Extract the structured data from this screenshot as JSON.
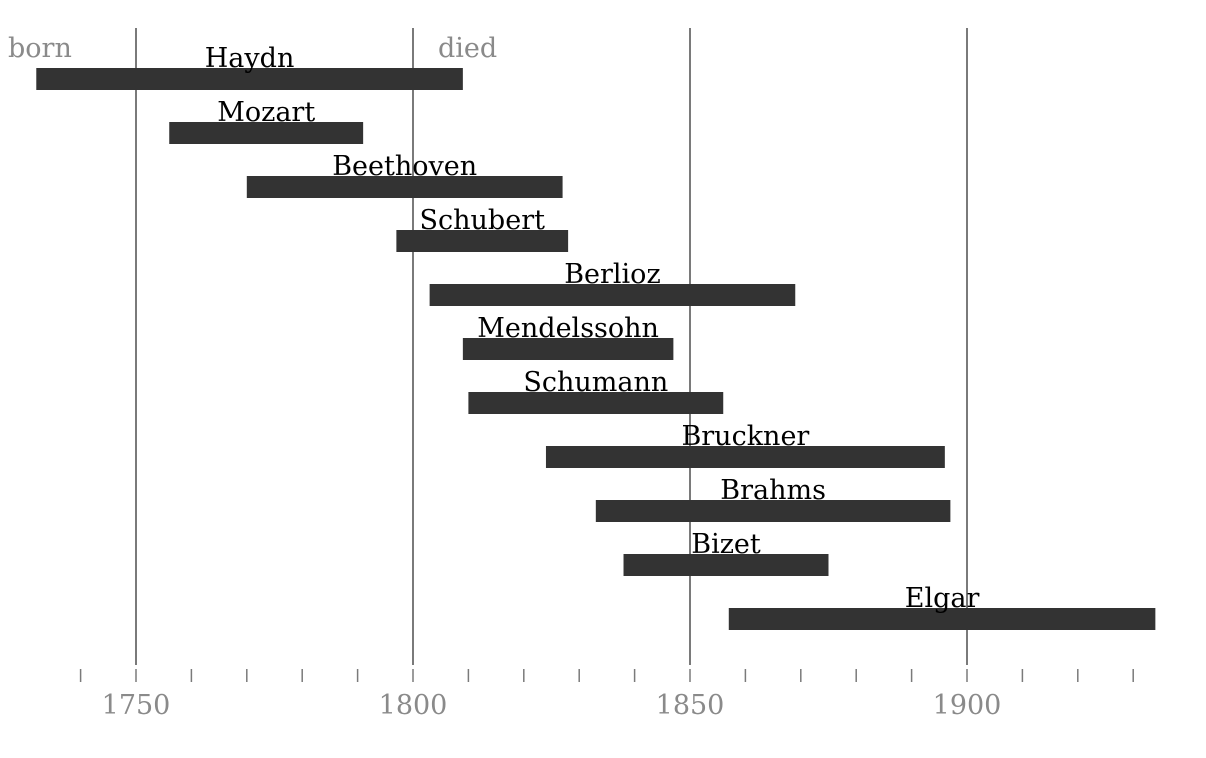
{
  "chart_data": {
    "type": "bar",
    "orientation": "horizontal",
    "series": [
      {
        "label": "Haydn",
        "start": 1732,
        "end": 1809
      },
      {
        "label": "Mozart",
        "start": 1756,
        "end": 1791
      },
      {
        "label": "Beethoven",
        "start": 1770,
        "end": 1827
      },
      {
        "label": "Schubert",
        "start": 1797,
        "end": 1828
      },
      {
        "label": "Berlioz",
        "start": 1803,
        "end": 1869
      },
      {
        "label": "Mendelssohn",
        "start": 1809,
        "end": 1847
      },
      {
        "label": "Schumann",
        "start": 1810,
        "end": 1856
      },
      {
        "label": "Bruckner",
        "start": 1824,
        "end": 1896
      },
      {
        "label": "Brahms",
        "start": 1833,
        "end": 1897
      },
      {
        "label": "Bizet",
        "start": 1838,
        "end": 1875
      },
      {
        "label": "Elgar",
        "start": 1857,
        "end": 1934
      }
    ],
    "annotations": {
      "start_label": "born",
      "end_label": "died"
    },
    "xlim": [
      1725,
      1935
    ],
    "major_ticks": [
      1750,
      1800,
      1850,
      1900
    ],
    "minor_tick_step": 10,
    "minor_tick_range": [
      1740,
      1930
    ],
    "grid": true,
    "colors": {
      "bar": "#333333",
      "grid": "#7a7a7a",
      "tick_label": "#8a8a8a"
    }
  }
}
